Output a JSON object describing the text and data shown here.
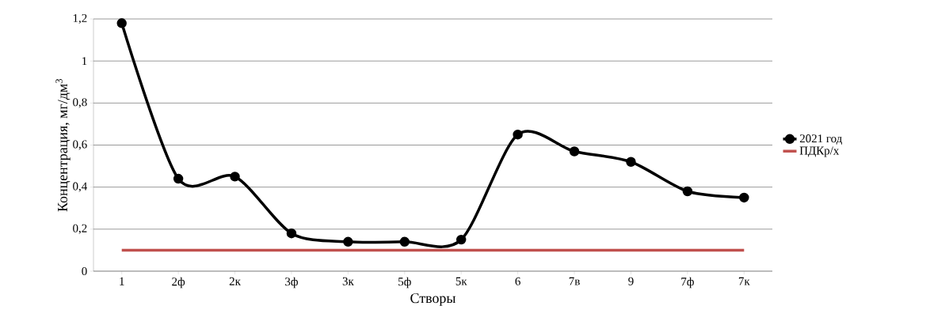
{
  "chart_data": {
    "type": "line",
    "xlabel": "Створы",
    "ylabel": "Концентрация, мг/дм$^{3}$",
    "categories": [
      "1",
      "2ф",
      "2к",
      "3ф",
      "3к",
      "5ф",
      "5к",
      "6",
      "7в",
      "9",
      "7ф",
      "7к"
    ],
    "series": [
      {
        "name": "2021 год",
        "color": "#000000",
        "marker": "circle",
        "values": [
          1.18,
          0.44,
          0.45,
          0.18,
          0.14,
          0.14,
          0.15,
          0.65,
          0.57,
          0.52,
          0.38,
          0.35
        ]
      },
      {
        "name": "ПДКр/х",
        "color": "#c0504d",
        "marker": "none",
        "values": [
          0.1,
          0.1,
          0.1,
          0.1,
          0.1,
          0.1,
          0.1,
          0.1,
          0.1,
          0.1,
          0.1,
          0.1
        ]
      }
    ],
    "ylim": [
      0,
      1.2
    ],
    "yticks": [
      0,
      {
        "value": 0.2,
        "label": "0,2"
      },
      {
        "value": 0.4,
        "label": "0,4"
      },
      {
        "value": 0.6,
        "label": "0,6"
      },
      {
        "value": 0.8,
        "label": "0,8"
      },
      1,
      {
        "value": 1.2,
        "label": "1,2"
      }
    ],
    "grid": "y",
    "legend": "right",
    "line_style": "solid"
  }
}
